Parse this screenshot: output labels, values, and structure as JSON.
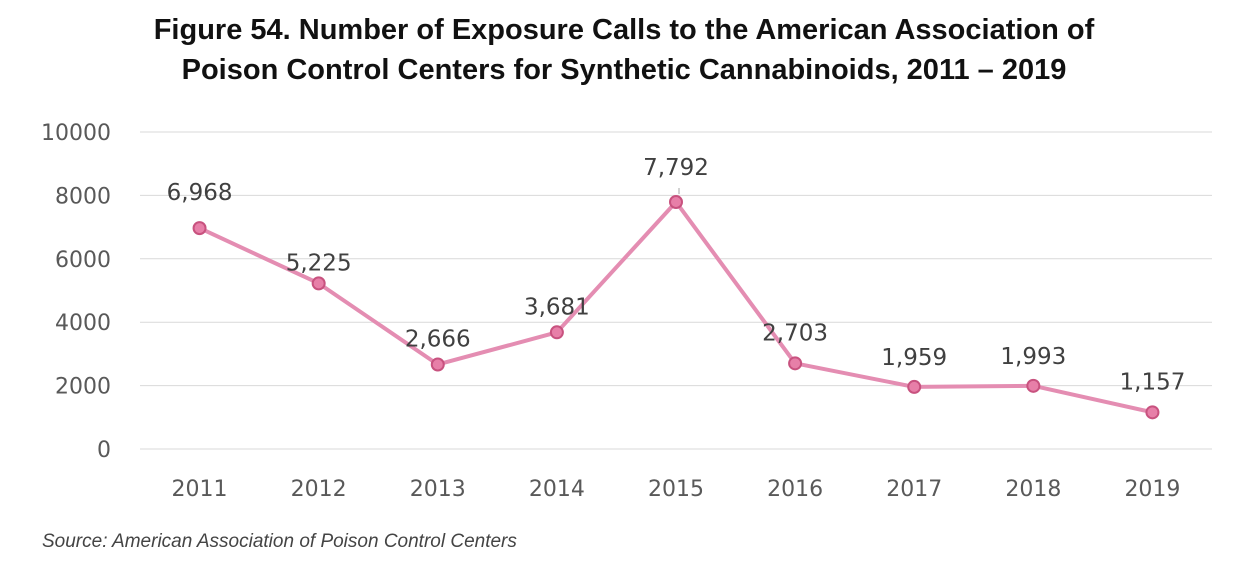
{
  "title": {
    "line1": "Figure 54. Number of Exposure Calls to the American Association of",
    "line2": "Poison Control Centers for Synthetic Cannabinoids, 2011 – 2019"
  },
  "source": "Source: American Association of Poison Control Centers",
  "colors": {
    "line": "#e48db2",
    "marker_fill": "#e77fa8",
    "marker_stroke": "#c8527f",
    "grid": "#d9d9d9"
  },
  "chart_data": {
    "type": "line",
    "title": "Figure 54. Number of Exposure Calls to the American Association of Poison Control Centers for Synthetic Cannabinoids, 2011 – 2019",
    "categories": [
      "2011",
      "2012",
      "2013",
      "2014",
      "2015",
      "2016",
      "2017",
      "2018",
      "2019"
    ],
    "values": [
      6968,
      5225,
      2666,
      3681,
      7792,
      2703,
      1959,
      1993,
      1157
    ],
    "data_labels": [
      "6,968",
      "5,225",
      "2,666",
      "3,681",
      "7,792",
      "2,703",
      "1,959",
      "1,993",
      "1,157"
    ],
    "yticks": [
      "0",
      "2000",
      "4000",
      "6000",
      "8000",
      "10000"
    ],
    "ylim": [
      0,
      10000
    ],
    "xlabel": "",
    "ylabel": "",
    "grid": true,
    "legend": "none"
  }
}
